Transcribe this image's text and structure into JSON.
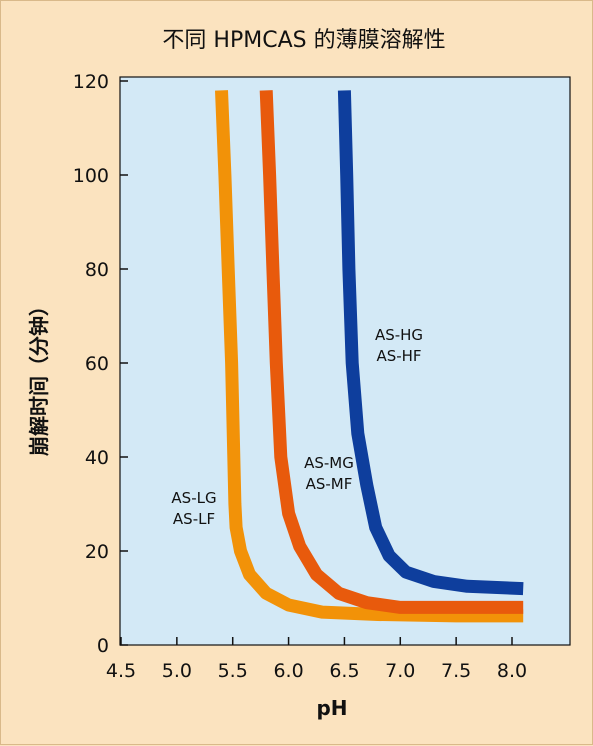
{
  "chart_data": {
    "type": "line",
    "title": "不同 HPMCAS 的薄膜溶解性",
    "xlabel": "pH",
    "ylabel": "崩解时间（分钟）",
    "xlim": [
      4.5,
      8.5
    ],
    "ylim": [
      0,
      120
    ],
    "xticks": [
      4.5,
      5.0,
      5.5,
      6.0,
      6.5,
      7.0,
      7.5,
      8.0
    ],
    "xtick_labels": [
      "4.5",
      "5.0",
      "5.5",
      "6.0",
      "6.5",
      "7.0",
      "7.5",
      "8.0"
    ],
    "yticks": [
      0,
      20,
      40,
      60,
      80,
      100,
      120
    ],
    "ytick_labels": [
      "0",
      "20",
      "40",
      "60",
      "80",
      "100",
      "120"
    ],
    "grid": false,
    "plot_background": "#d3e9f6",
    "page_background": "#fbe3bf",
    "series": [
      {
        "color": "#f29208",
        "points": [
          [
            5.4,
            118
          ],
          [
            5.43,
            100
          ],
          [
            5.46,
            80
          ],
          [
            5.49,
            60
          ],
          [
            5.51,
            40
          ],
          [
            5.52,
            30
          ],
          [
            5.53,
            25
          ],
          [
            5.57,
            20
          ],
          [
            5.65,
            15
          ],
          [
            5.8,
            11
          ],
          [
            6.0,
            8.5
          ],
          [
            6.3,
            7
          ],
          [
            6.8,
            6.5
          ],
          [
            7.5,
            6.2
          ],
          [
            8.1,
            6.2
          ]
        ]
      },
      {
        "color": "#e85a0c",
        "points": [
          [
            5.8,
            118
          ],
          [
            5.83,
            100
          ],
          [
            5.86,
            80
          ],
          [
            5.89,
            60
          ],
          [
            5.93,
            40
          ],
          [
            6.0,
            28
          ],
          [
            6.1,
            21
          ],
          [
            6.25,
            15
          ],
          [
            6.45,
            11
          ],
          [
            6.7,
            9
          ],
          [
            7.0,
            8
          ],
          [
            7.5,
            8
          ],
          [
            8.1,
            8
          ]
        ]
      },
      {
        "color": "#0e3e9d",
        "points": [
          [
            6.5,
            118
          ],
          [
            6.52,
            100
          ],
          [
            6.54,
            80
          ],
          [
            6.57,
            60
          ],
          [
            6.62,
            45
          ],
          [
            6.7,
            34
          ],
          [
            6.78,
            25
          ],
          [
            6.9,
            19
          ],
          [
            7.05,
            15.5
          ],
          [
            7.3,
            13.5
          ],
          [
            7.6,
            12.5
          ],
          [
            8.1,
            12
          ]
        ]
      }
    ],
    "annotations": [
      {
        "lines": [
          "AS-LG",
          "AS-LF"
        ]
      },
      {
        "lines": [
          "AS-MG",
          "AS-MF"
        ]
      },
      {
        "lines": [
          "AS-HG",
          "AS-HF"
        ]
      }
    ]
  }
}
